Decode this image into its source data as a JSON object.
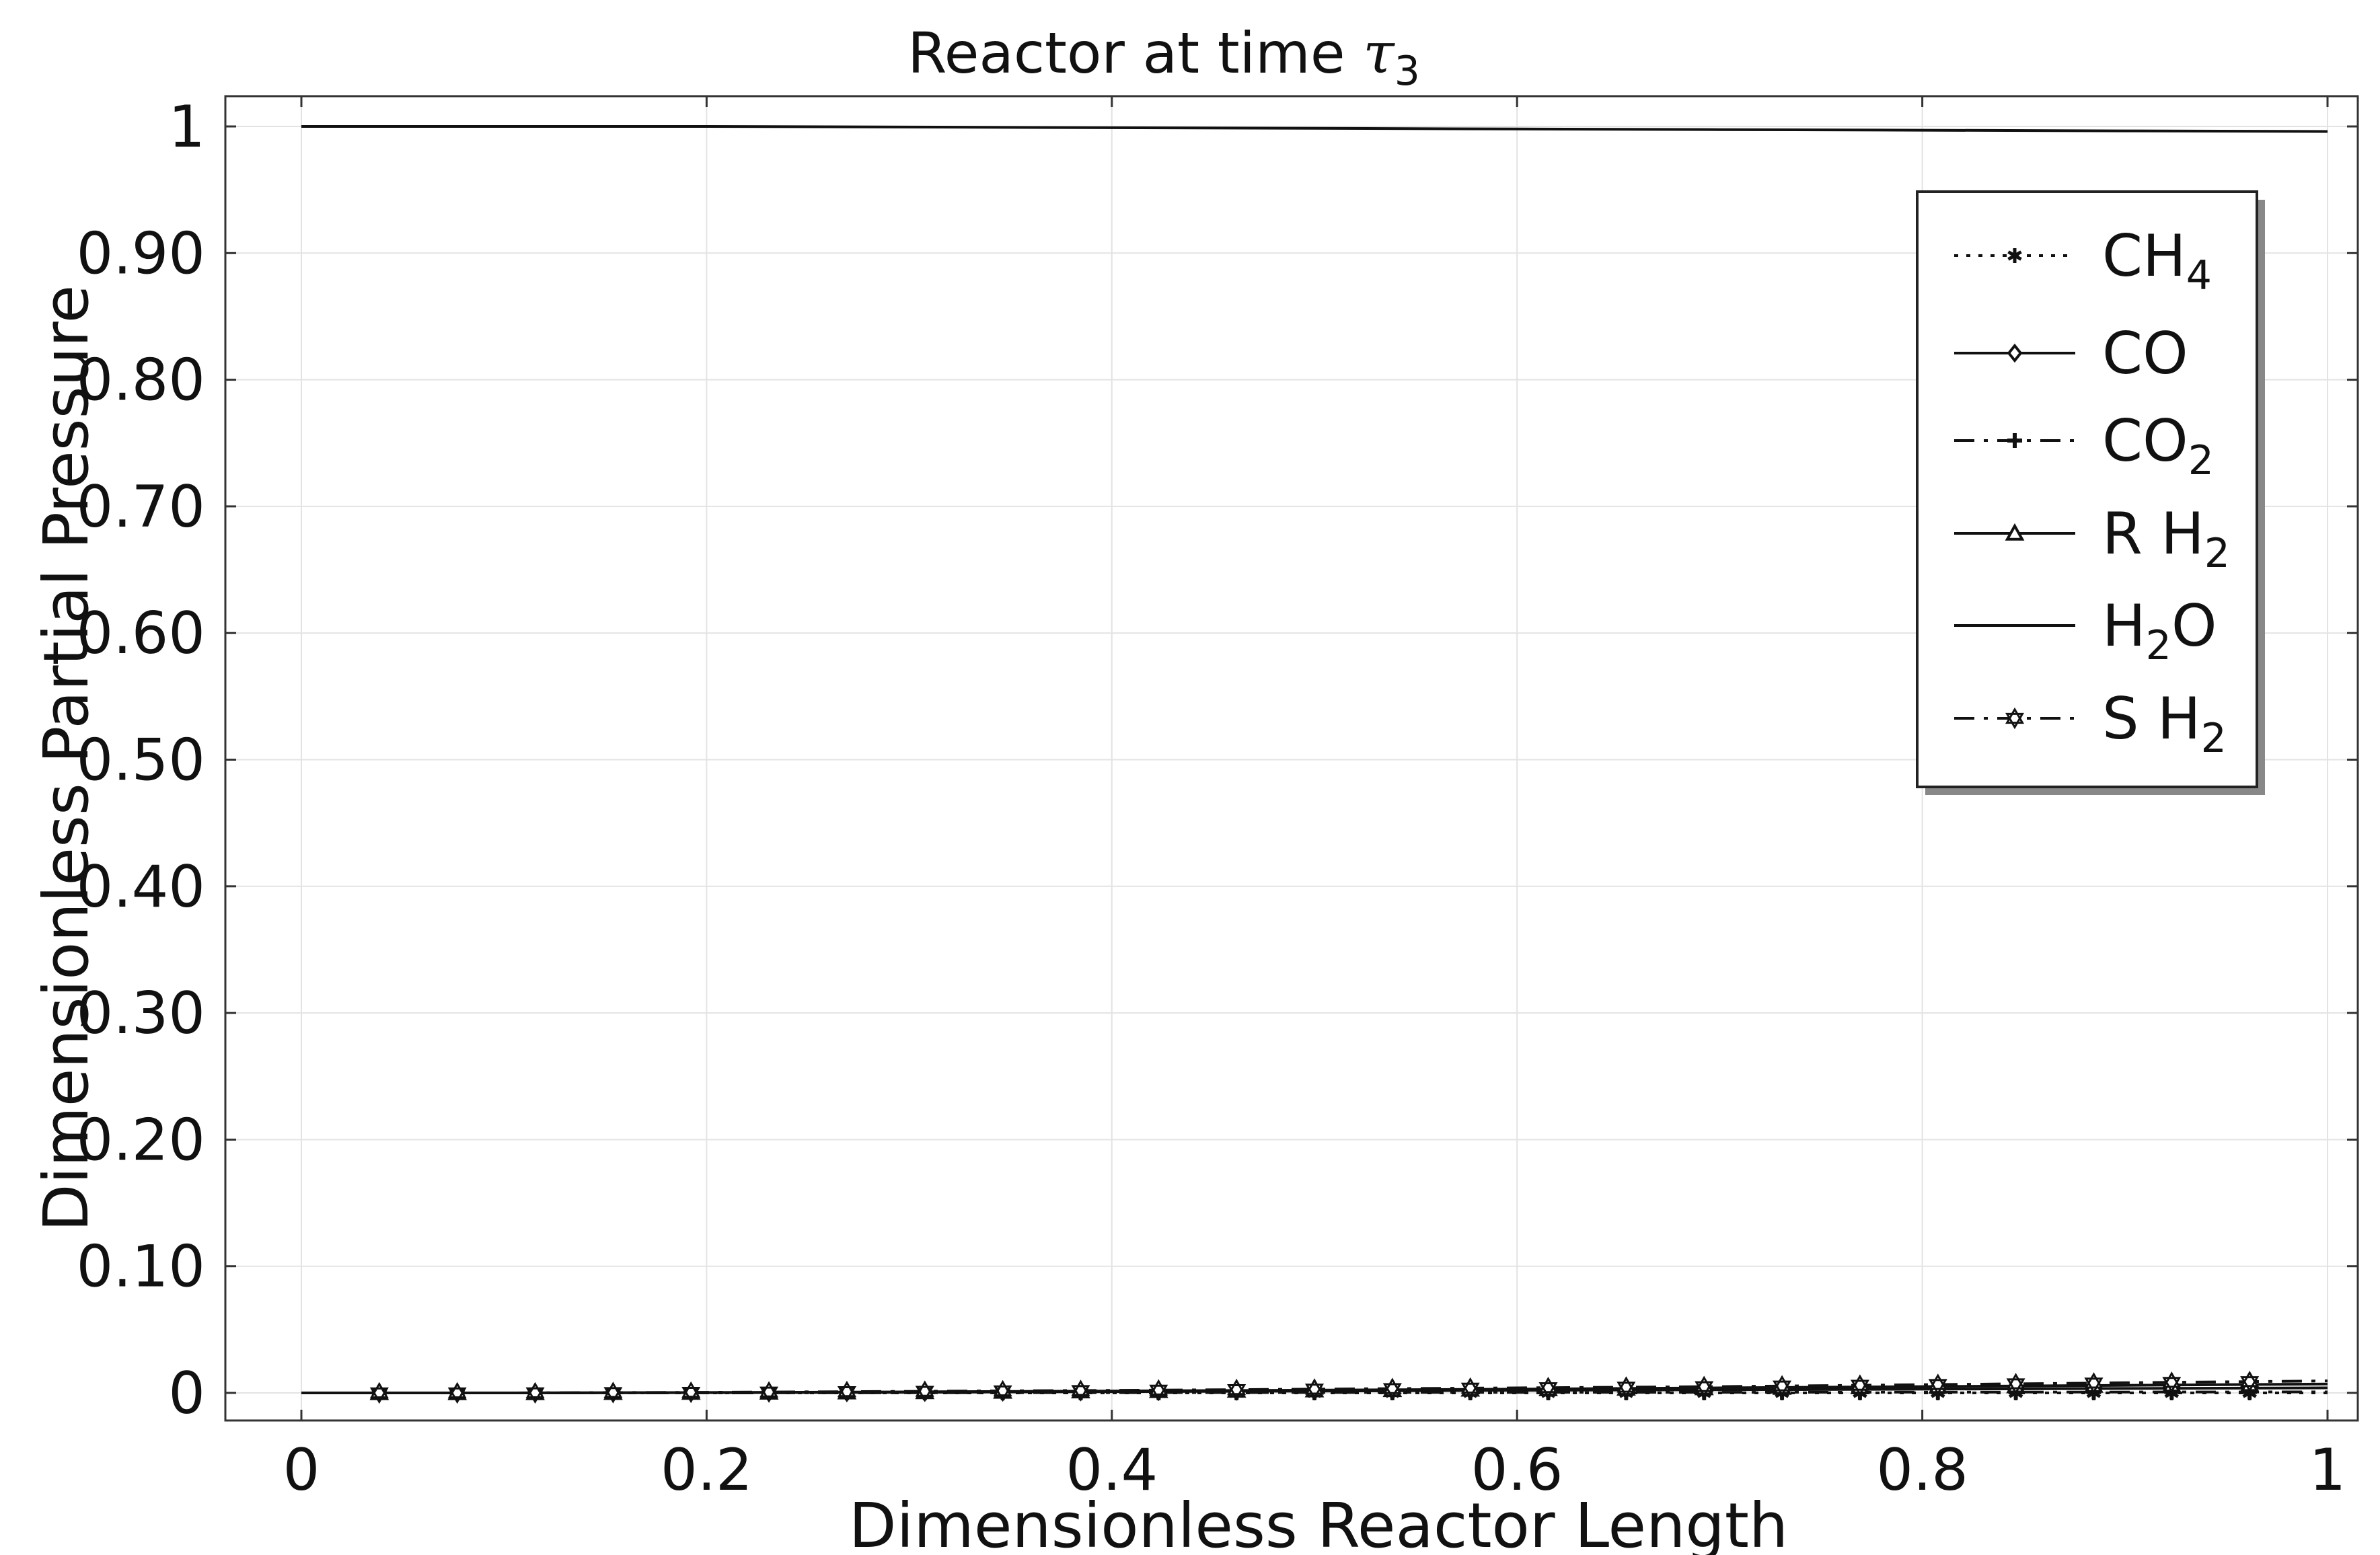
{
  "chart_data": {
    "type": "line",
    "title_main": "Reactor at time ",
    "title_symbol": "τ",
    "title_sub": "3",
    "xlabel": "Dimensionless Reactor Length",
    "ylabel": "Dimensionless Partial Pressure",
    "xlim": [
      0,
      1
    ],
    "ylim": [
      0,
      1
    ],
    "grid": true,
    "legend_position": "top-right",
    "x_ticks": [
      {
        "value": 0,
        "label": "0"
      },
      {
        "value": 0.2,
        "label": "0.2"
      },
      {
        "value": 0.4,
        "label": "0.4"
      },
      {
        "value": 0.6,
        "label": "0.6"
      },
      {
        "value": 0.8,
        "label": "0.8"
      },
      {
        "value": 1,
        "label": "1"
      }
    ],
    "y_ticks": [
      {
        "value": 0,
        "label": "0"
      },
      {
        "value": 0.1,
        "label": "0.10"
      },
      {
        "value": 0.2,
        "label": "0.20"
      },
      {
        "value": 0.3,
        "label": "0.30"
      },
      {
        "value": 0.4,
        "label": "0.40"
      },
      {
        "value": 0.5,
        "label": "0.50"
      },
      {
        "value": 0.6,
        "label": "0.60"
      },
      {
        "value": 0.7,
        "label": "0.70"
      },
      {
        "value": 0.8,
        "label": "0.80"
      },
      {
        "value": 0.9,
        "label": "0.90"
      },
      {
        "value": 1,
        "label": "1"
      }
    ],
    "x": [
      0,
      0.1,
      0.2,
      0.3,
      0.4,
      0.5,
      0.6,
      0.7,
      0.8,
      0.9,
      1.0
    ],
    "series": [
      {
        "name_base": "CH",
        "name_sub": "4",
        "marker": "asterisk",
        "dash": "dotted",
        "values": [
          0,
          0,
          0,
          0,
          0,
          0,
          0,
          0,
          0,
          0,
          0
        ]
      },
      {
        "name_base": "CO",
        "name_sub": "",
        "marker": "diamond",
        "dash": "solid",
        "values": [
          0,
          0,
          0.0002,
          0.0005,
          0.001,
          0.0015,
          0.002,
          0.0025,
          0.003,
          0.0035,
          0.004
        ]
      },
      {
        "name_base": "CO",
        "name_sub": "2",
        "marker": "plus",
        "dash": "dashdot",
        "values": [
          0,
          0,
          0,
          0.0001,
          0.0002,
          0.0003,
          0.0004,
          0.0005,
          0.0006,
          0.0007,
          0.0008
        ]
      },
      {
        "name_base": "R H",
        "name_sub": "2",
        "marker": "triangle",
        "dash": "solid",
        "values": [
          0,
          0,
          0.0003,
          0.0008,
          0.0015,
          0.0022,
          0.003,
          0.004,
          0.005,
          0.006,
          0.007
        ]
      },
      {
        "name_base": "H",
        "name_sub": "2",
        "name_tail": "O",
        "marker": "none",
        "dash": "solid",
        "values": [
          1.0,
          1.0,
          1.0,
          0.9995,
          0.999,
          0.9985,
          0.998,
          0.9975,
          0.997,
          0.9965,
          0.996
        ]
      },
      {
        "name_base": "S H",
        "name_sub": "2",
        "marker": "hexagram",
        "dash": "dashdot",
        "values": [
          0,
          0,
          0.0005,
          0.0012,
          0.002,
          0.003,
          0.004,
          0.005,
          0.0065,
          0.008,
          0.0095
        ]
      }
    ]
  }
}
